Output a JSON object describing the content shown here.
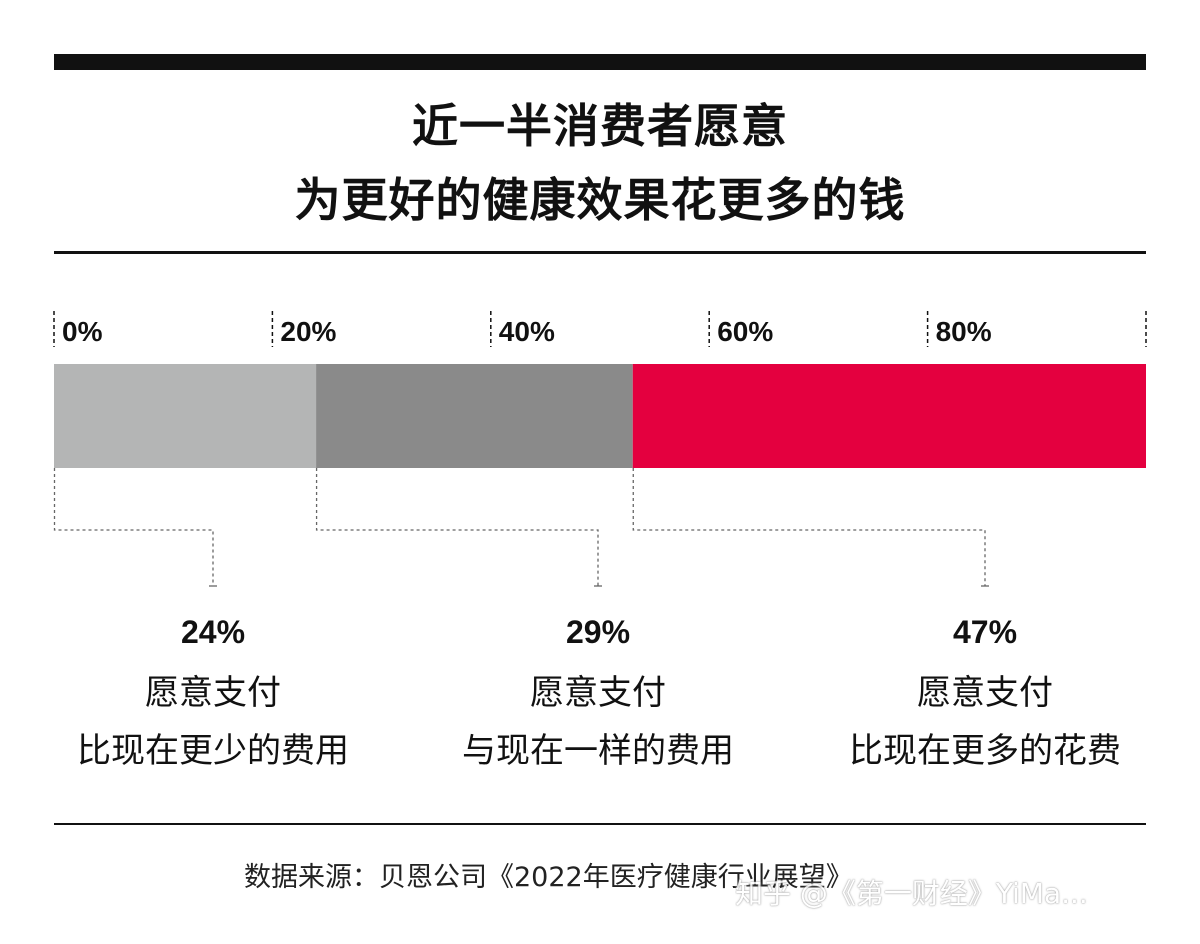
{
  "header": {
    "title_line1": "近一半消费者愿意",
    "title_line2": "为更好的健康效果花更多的钱"
  },
  "chart_data": {
    "type": "bar",
    "orientation": "horizontal-stacked",
    "xlim": [
      0,
      100
    ],
    "ticks": [
      "0%",
      "20%",
      "40%",
      "60%",
      "80%"
    ],
    "tick_values": [
      0,
      20,
      40,
      60,
      80,
      100
    ],
    "segments": [
      {
        "value": 24,
        "label": "24%",
        "desc_line1": "愿意支付",
        "desc_line2": "比现在更少的费用",
        "color": "#b4b5b5"
      },
      {
        "value": 29,
        "label": "29%",
        "desc_line1": "愿意支付",
        "desc_line2": "与现在一样的费用",
        "color": "#8a8a8a"
      },
      {
        "value": 47,
        "label": "47%",
        "desc_line1": "愿意支付",
        "desc_line2": "比现在更多的花费",
        "color": "#e4003f"
      }
    ]
  },
  "footer": {
    "source": "数据来源：贝恩公司《2022年医疗健康行业展望》",
    "watermark": "知乎 @《第一财经》YiMa..."
  }
}
